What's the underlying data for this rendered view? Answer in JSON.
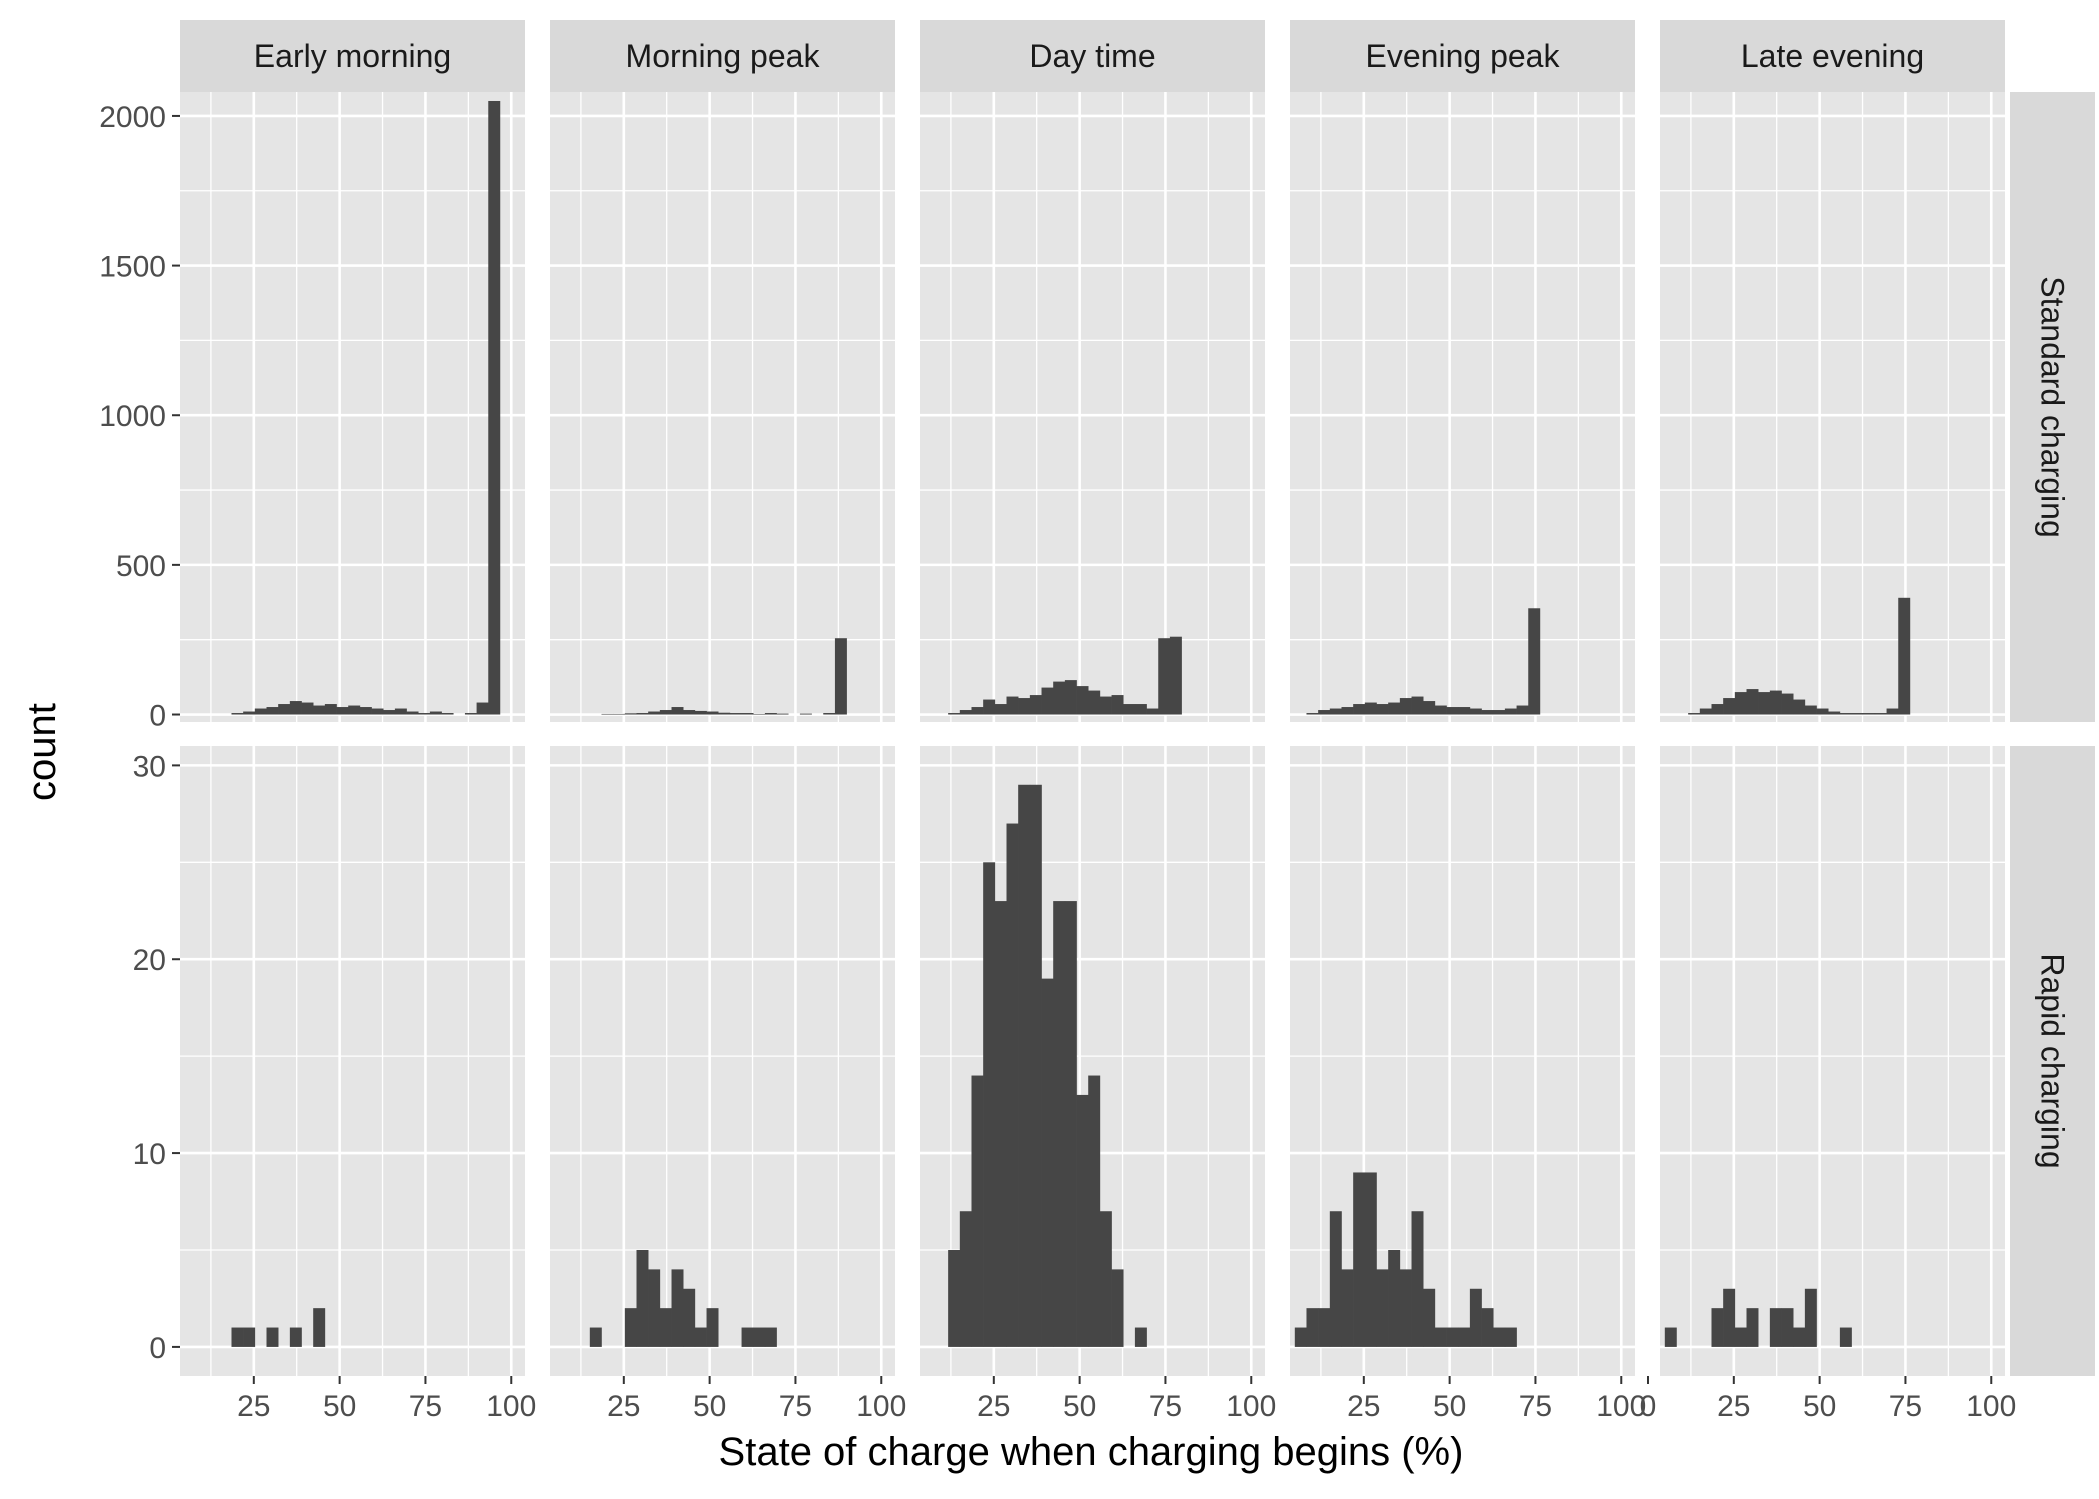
{
  "chart_data": {
    "type": "bar",
    "subtype": "faceted-histogram",
    "xlabel": "State of charge when charging begins (%)",
    "ylabel": "count",
    "columns": [
      "Early morning",
      "Morning peak",
      "Day time",
      "Evening peak",
      "Late evening"
    ],
    "rows": [
      {
        "name": "Standard charging",
        "ylim": [
          -25,
          2080
        ],
        "yticks": [
          0,
          500,
          1000,
          1500,
          2000
        ],
        "ytick_labels": [
          "0",
          "500",
          "1000",
          "1500",
          "2000"
        ]
      },
      {
        "name": "Rapid charging",
        "ylim": [
          -1.5,
          31
        ],
        "yticks": [
          0,
          10,
          20,
          30
        ],
        "ytick_labels": [
          "0",
          "10",
          "20",
          "30"
        ]
      }
    ],
    "xlim": [
      3.5,
      104
    ],
    "bin_width": 3.4,
    "bin_centers": [
      3.2,
      6.6,
      10.0,
      13.4,
      16.8,
      20.2,
      23.6,
      27.0,
      30.4,
      33.8,
      37.2,
      40.6,
      44.0,
      47.4,
      50.8,
      54.2,
      57.6,
      61.0,
      64.4,
      67.8,
      71.2,
      74.6,
      78.0,
      81.4,
      84.8,
      88.2,
      91.6,
      95.0,
      98.4
    ],
    "panels": [
      {
        "row": "Standard charging",
        "column": "Early morning",
        "xticks": [
          25,
          50,
          75,
          100
        ],
        "xtick_labels": [
          "25",
          "50",
          "75",
          "100"
        ],
        "values": [
          0,
          0,
          0,
          0,
          0,
          5,
          10,
          20,
          25,
          35,
          45,
          40,
          30,
          35,
          25,
          30,
          25,
          20,
          15,
          20,
          10,
          5,
          10,
          5,
          0,
          5,
          40,
          2050,
          0
        ]
      },
      {
        "row": "Standard charging",
        "column": "Morning peak",
        "xticks": [
          25,
          50,
          75,
          100
        ],
        "xtick_labels": [
          "25",
          "50",
          "75",
          "100"
        ],
        "values": [
          0,
          0,
          0,
          0,
          0,
          2,
          2,
          4,
          5,
          10,
          15,
          25,
          15,
          12,
          10,
          6,
          5,
          5,
          2,
          5,
          3,
          0,
          3,
          0,
          5,
          255,
          0,
          0,
          0
        ]
      },
      {
        "row": "Standard charging",
        "column": "Day time",
        "xticks": [
          25,
          50,
          75,
          100
        ],
        "xtick_labels": [
          "25",
          "50",
          "75",
          "100"
        ],
        "values": [
          0,
          0,
          0,
          5,
          15,
          25,
          50,
          35,
          60,
          55,
          65,
          90,
          110,
          115,
          95,
          80,
          60,
          65,
          35,
          35,
          20,
          255,
          260,
          0,
          0,
          0,
          0,
          0,
          0
        ]
      },
      {
        "row": "Standard charging",
        "column": "Evening peak",
        "xticks": [
          25,
          50,
          75,
          100
        ],
        "xtick_labels": [
          "25",
          "50",
          "75",
          "100"
        ],
        "values": [
          0,
          0,
          5,
          15,
          20,
          25,
          35,
          40,
          35,
          40,
          55,
          60,
          45,
          30,
          25,
          25,
          20,
          15,
          15,
          20,
          30,
          355,
          0,
          0,
          0,
          0,
          0,
          0,
          0
        ]
      },
      {
        "row": "Standard charging",
        "column": "Late evening",
        "xticks": [
          0,
          25,
          50,
          75,
          100
        ],
        "xtick_labels": [
          "0",
          "25",
          "50",
          "75",
          "100"
        ],
        "values": [
          0,
          0,
          0,
          5,
          20,
          35,
          55,
          75,
          85,
          75,
          80,
          70,
          50,
          30,
          20,
          10,
          5,
          5,
          5,
          5,
          20,
          390,
          0,
          0,
          0,
          0,
          0,
          0,
          0
        ]
      },
      {
        "row": "Rapid charging",
        "column": "Early morning",
        "xticks": [
          25,
          50,
          75,
          100
        ],
        "xtick_labels": [
          "25",
          "50",
          "75",
          "100"
        ],
        "values": [
          0,
          0,
          0,
          0,
          0,
          1,
          1,
          0,
          1,
          0,
          1,
          0,
          2,
          0,
          0,
          0,
          0,
          0,
          0,
          0,
          0,
          0,
          0,
          0,
          0,
          0,
          0,
          0,
          0
        ]
      },
      {
        "row": "Rapid charging",
        "column": "Morning peak",
        "xticks": [
          25,
          50,
          75,
          100
        ],
        "xtick_labels": [
          "25",
          "50",
          "75",
          "100"
        ],
        "values": [
          0,
          0,
          0,
          0,
          1,
          0,
          0,
          2,
          5,
          4,
          2,
          4,
          3,
          1,
          2,
          0,
          0,
          1,
          1,
          1,
          0,
          0,
          0,
          0,
          0,
          0,
          0,
          0,
          0
        ]
      },
      {
        "row": "Rapid charging",
        "column": "Day time",
        "xticks": [
          25,
          50,
          75,
          100
        ],
        "xtick_labels": [
          "25",
          "50",
          "75",
          "100"
        ],
        "values": [
          0,
          0,
          0,
          5,
          7,
          14,
          25,
          23,
          27,
          29,
          29,
          19,
          23,
          23,
          13,
          14,
          7,
          4,
          0,
          1,
          0,
          0,
          0,
          0,
          0,
          0,
          0,
          0,
          0
        ]
      },
      {
        "row": "Rapid charging",
        "column": "Evening peak",
        "xticks": [
          25,
          50,
          75,
          100
        ],
        "xtick_labels": [
          "25",
          "50",
          "75",
          "100"
        ],
        "values": [
          0,
          1,
          2,
          2,
          7,
          4,
          9,
          9,
          4,
          5,
          4,
          7,
          3,
          1,
          1,
          1,
          3,
          2,
          1,
          1,
          0,
          0,
          0,
          0,
          0,
          0,
          0,
          0,
          0
        ]
      },
      {
        "row": "Rapid charging",
        "column": "Late evening",
        "xticks": [
          0,
          25,
          50,
          75,
          100
        ],
        "xtick_labels": [
          "0",
          "25",
          "50",
          "75",
          "100"
        ],
        "values": [
          0,
          1,
          0,
          0,
          0,
          2,
          3,
          1,
          2,
          0,
          2,
          2,
          1,
          3,
          0,
          0,
          1,
          0,
          0,
          0,
          0,
          0,
          0,
          0,
          0,
          0,
          0,
          0,
          0
        ]
      }
    ],
    "grid": true,
    "legend": "none"
  }
}
